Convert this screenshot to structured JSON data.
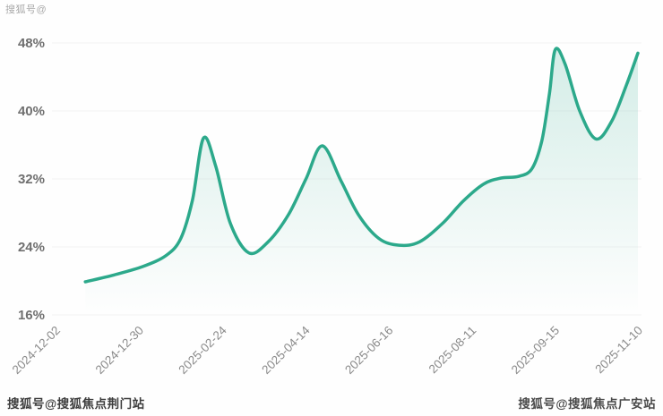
{
  "watermarks": {
    "top_left": "搜狐号@",
    "bottom_left": "搜狐号@搜狐焦点荆门站",
    "bottom_right": "搜狐号@搜狐焦点广安站"
  },
  "chart_data": {
    "type": "area",
    "title": "",
    "xlabel": "",
    "ylabel": "",
    "x_tick_labels": [
      "2024-12-02",
      "2024-12-30",
      "2025-02-24",
      "2025-04-14",
      "2025-06-16",
      "2025-08-11",
      "2025-09-15",
      "2025-11-10"
    ],
    "y_ticks": [
      16,
      24,
      32,
      40,
      48
    ],
    "y_tick_suffix": "%",
    "ylim": [
      16,
      48
    ],
    "grid": "faint-horizontal",
    "legend": "none",
    "line_color": "#2ca98b",
    "fill_top_color": "rgba(44,169,139,0.20)",
    "fill_bottom_color": "rgba(44,169,139,0.0)",
    "axis_label_color": "#8a8a8a",
    "y_label_color": "#6f6f6f",
    "points": [
      [
        0.051,
        19.9
      ],
      [
        0.1,
        20.7
      ],
      [
        0.15,
        21.7
      ],
      [
        0.19,
        23.0
      ],
      [
        0.215,
        25.0
      ],
      [
        0.235,
        29.5
      ],
      [
        0.254,
        36.8
      ],
      [
        0.275,
        33.5
      ],
      [
        0.3,
        26.8
      ],
      [
        0.332,
        23.3
      ],
      [
        0.365,
        24.6
      ],
      [
        0.4,
        27.8
      ],
      [
        0.43,
        32.0
      ],
      [
        0.458,
        35.9
      ],
      [
        0.49,
        31.8
      ],
      [
        0.52,
        27.8
      ],
      [
        0.555,
        25.0
      ],
      [
        0.59,
        24.2
      ],
      [
        0.625,
        24.6
      ],
      [
        0.665,
        26.8
      ],
      [
        0.7,
        29.4
      ],
      [
        0.735,
        31.4
      ],
      [
        0.765,
        32.1
      ],
      [
        0.795,
        32.3
      ],
      [
        0.818,
        33.2
      ],
      [
        0.835,
        36.5
      ],
      [
        0.848,
        42.0
      ],
      [
        0.858,
        47.2
      ],
      [
        0.875,
        45.5
      ],
      [
        0.9,
        40.0
      ],
      [
        0.928,
        36.7
      ],
      [
        0.955,
        38.8
      ],
      [
        0.98,
        43.0
      ],
      [
        1.0,
        46.8
      ]
    ]
  }
}
